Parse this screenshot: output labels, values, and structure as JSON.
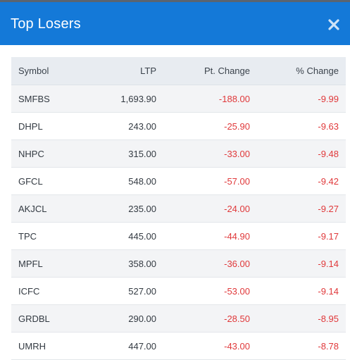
{
  "modal": {
    "title": "Top Losers",
    "close_icon": "close-icon"
  },
  "table": {
    "headers": {
      "symbol": "Symbol",
      "ltp": "LTP",
      "pt_change": "Pt. Change",
      "pct_change": "% Change"
    },
    "rows": [
      {
        "symbol": "SMFBS",
        "ltp": "1,693.90",
        "pt_change": "-188.00",
        "pct_change": "-9.99"
      },
      {
        "symbol": "DHPL",
        "ltp": "243.00",
        "pt_change": "-25.90",
        "pct_change": "-9.63"
      },
      {
        "symbol": "NHPC",
        "ltp": "315.00",
        "pt_change": "-33.00",
        "pct_change": "-9.48"
      },
      {
        "symbol": "GFCL",
        "ltp": "548.00",
        "pt_change": "-57.00",
        "pct_change": "-9.42"
      },
      {
        "symbol": "AKJCL",
        "ltp": "235.00",
        "pt_change": "-24.00",
        "pct_change": "-9.27"
      },
      {
        "symbol": "TPC",
        "ltp": "445.00",
        "pt_change": "-44.90",
        "pct_change": "-9.17"
      },
      {
        "symbol": "MPFL",
        "ltp": "358.00",
        "pt_change": "-36.00",
        "pct_change": "-9.14"
      },
      {
        "symbol": "ICFC",
        "ltp": "527.00",
        "pt_change": "-53.00",
        "pct_change": "-9.14"
      },
      {
        "symbol": "GRDBL",
        "ltp": "290.00",
        "pt_change": "-28.50",
        "pct_change": "-8.95"
      },
      {
        "symbol": "UMRH",
        "ltp": "447.00",
        "pt_change": "-43.00",
        "pct_change": "-8.78"
      }
    ]
  },
  "colors": {
    "header_bg": "#1479d8",
    "negative": "#e0383a",
    "table_header_bg": "#e8ecf1"
  }
}
